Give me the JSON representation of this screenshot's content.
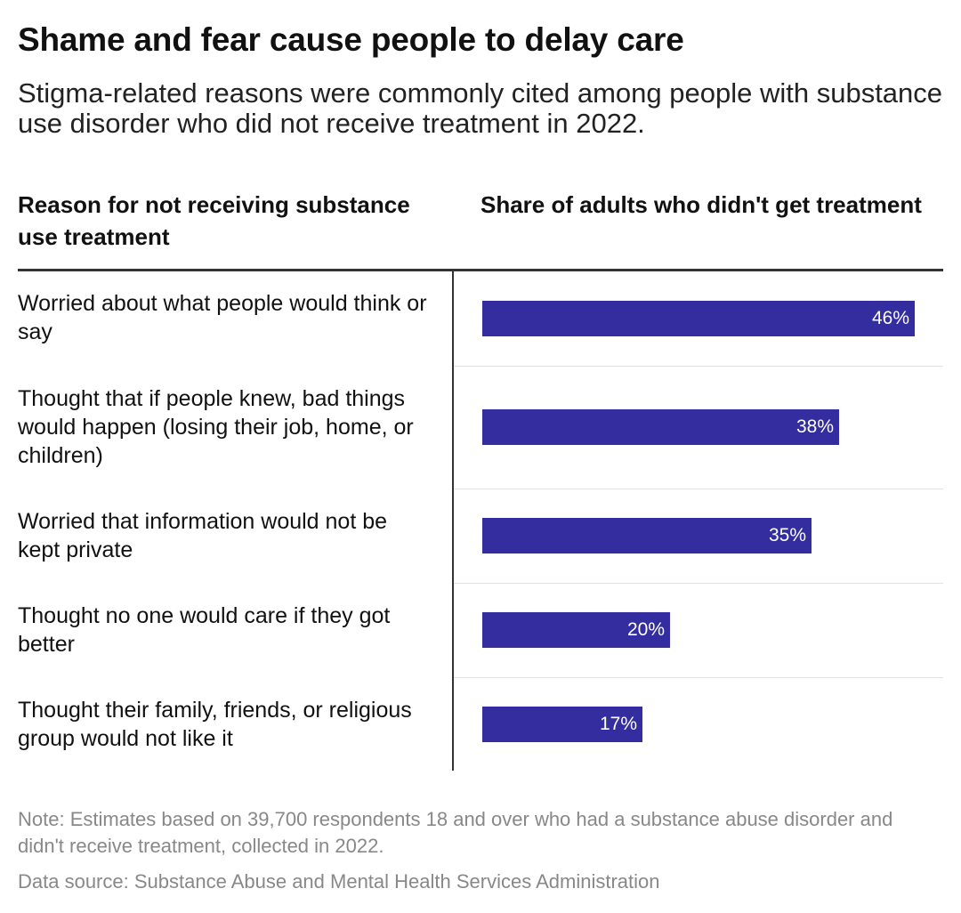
{
  "title": "Shame and fear cause people to delay care",
  "subtitle": "Stigma-related reasons were commonly cited among people with substance use disorder who did not receive treatment in 2022.",
  "columns": {
    "left": "Reason for not receiving substance use treatment",
    "right": "Share of adults who didn't get treatment"
  },
  "note": "Note: Estimates based on 39,700 respondents 18 and over who had a substance abuse disorder and didn't receive treatment, collected in 2022.",
  "source": "Data source: Substance Abuse and Mental Health Services Administration",
  "colors": {
    "bar": "#332d9f",
    "bar_label": "#ffffff"
  },
  "chart_data": {
    "type": "bar",
    "orientation": "horizontal",
    "categories": [
      "Worried about what people would think or say",
      "Thought that if people knew, bad things would happen (losing their job, home, or children)",
      "Worried that information would not be kept private",
      "Thought no one would care if they got better",
      "Thought their family, friends, or religious group would not like it"
    ],
    "values": [
      46,
      38,
      35,
      20,
      17
    ],
    "value_labels": [
      "46%",
      "38%",
      "35%",
      "20%",
      "17%"
    ],
    "unit": "%",
    "xlim": [
      0,
      46
    ],
    "title": "Shame and fear cause people to delay care",
    "xlabel": "Share of adults who didn't get treatment",
    "ylabel": "Reason for not receiving substance use treatment"
  }
}
